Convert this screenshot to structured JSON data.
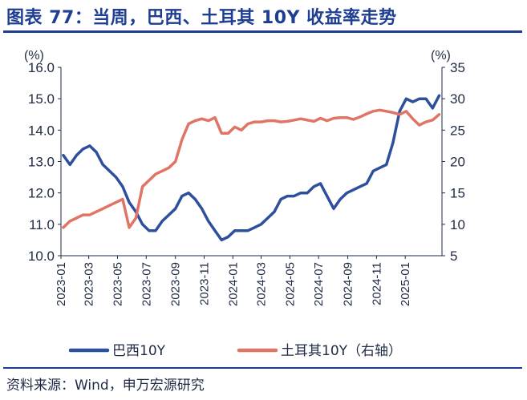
{
  "header": {
    "title": "图表 77：当周，巴西、土耳其 10Y 收益率走势"
  },
  "footer": {
    "source": "资料来源：Wind，申万宏源研究"
  },
  "colors": {
    "brand": "#1f3e93",
    "brazil": "#2e4f9c",
    "turkey": "#e07465"
  },
  "chart_data": {
    "type": "line",
    "left_axis": {
      "unit": "(%)",
      "ylim": [
        10.0,
        16.0
      ],
      "ticks": [
        "10.0",
        "11.0",
        "12.0",
        "13.0",
        "14.0",
        "15.0",
        "16.0"
      ]
    },
    "right_axis": {
      "unit": "(%)",
      "ylim": [
        5,
        35
      ],
      "ticks": [
        "5",
        "10",
        "15",
        "20",
        "25",
        "30",
        "35"
      ]
    },
    "x_tick_labels": [
      "2023-01",
      "2023-03",
      "2023-05",
      "2023-07",
      "2023-09",
      "2023-11",
      "2024-01",
      "2024-03",
      "2024-05",
      "2024-07",
      "2024-09",
      "2024-11",
      "2025-01"
    ],
    "x": [
      "2023-01-06",
      "2023-01-20",
      "2023-02-03",
      "2023-02-17",
      "2023-03-03",
      "2023-03-17",
      "2023-03-31",
      "2023-04-14",
      "2023-04-28",
      "2023-05-12",
      "2023-05-26",
      "2023-06-09",
      "2023-06-23",
      "2023-07-07",
      "2023-07-21",
      "2023-08-04",
      "2023-08-18",
      "2023-09-01",
      "2023-09-15",
      "2023-09-29",
      "2023-10-13",
      "2023-10-27",
      "2023-11-10",
      "2023-11-24",
      "2023-12-08",
      "2023-12-22",
      "2024-01-05",
      "2024-01-19",
      "2024-02-02",
      "2024-02-16",
      "2024-03-01",
      "2024-03-15",
      "2024-03-29",
      "2024-04-12",
      "2024-04-26",
      "2024-05-10",
      "2024-05-24",
      "2024-06-07",
      "2024-06-21",
      "2024-07-05",
      "2024-07-19",
      "2024-08-02",
      "2024-08-16",
      "2024-08-30",
      "2024-09-13",
      "2024-09-27",
      "2024-10-11",
      "2024-10-25",
      "2024-11-08",
      "2024-11-22",
      "2024-12-06",
      "2024-12-20",
      "2025-01-03",
      "2025-01-17",
      "2025-01-31",
      "2025-02-14",
      "2025-02-28",
      "2025-03-14"
    ],
    "series": [
      {
        "name": "巴西10Y",
        "axis": "left",
        "values": [
          13.2,
          12.9,
          13.2,
          13.4,
          13.5,
          13.3,
          12.9,
          12.7,
          12.5,
          12.2,
          11.7,
          11.4,
          11.0,
          10.8,
          10.8,
          11.1,
          11.3,
          11.5,
          11.9,
          12.0,
          11.8,
          11.5,
          11.1,
          10.8,
          10.5,
          10.6,
          10.8,
          10.8,
          10.8,
          10.9,
          11.0,
          11.2,
          11.4,
          11.8,
          11.9,
          11.9,
          12.0,
          12.0,
          12.2,
          12.3,
          11.9,
          11.5,
          11.8,
          12.0,
          12.1,
          12.2,
          12.3,
          12.7,
          12.8,
          12.9,
          13.6,
          14.6,
          15.0,
          14.9,
          15.0,
          15.0,
          14.7,
          15.1
        ]
      },
      {
        "name": "土耳其10Y（右轴）",
        "axis": "right",
        "values": [
          9.5,
          10.5,
          11.0,
          11.5,
          11.5,
          12.0,
          12.5,
          13.0,
          13.5,
          14.0,
          9.5,
          11.0,
          16.0,
          17.0,
          18.0,
          18.5,
          19.0,
          20.0,
          23.5,
          26.0,
          26.5,
          26.8,
          26.5,
          27.0,
          24.5,
          24.5,
          25.5,
          25.0,
          26.0,
          26.3,
          26.3,
          26.5,
          26.5,
          26.3,
          26.4,
          26.6,
          26.8,
          26.6,
          26.4,
          26.9,
          26.5,
          26.9,
          27.0,
          27.0,
          26.7,
          27.1,
          27.6,
          28.0,
          28.2,
          28.0,
          27.8,
          27.5,
          28.0,
          26.8,
          25.8,
          26.3,
          26.6,
          27.5
        ]
      }
    ],
    "legend_position": "bottom",
    "grid": false
  }
}
